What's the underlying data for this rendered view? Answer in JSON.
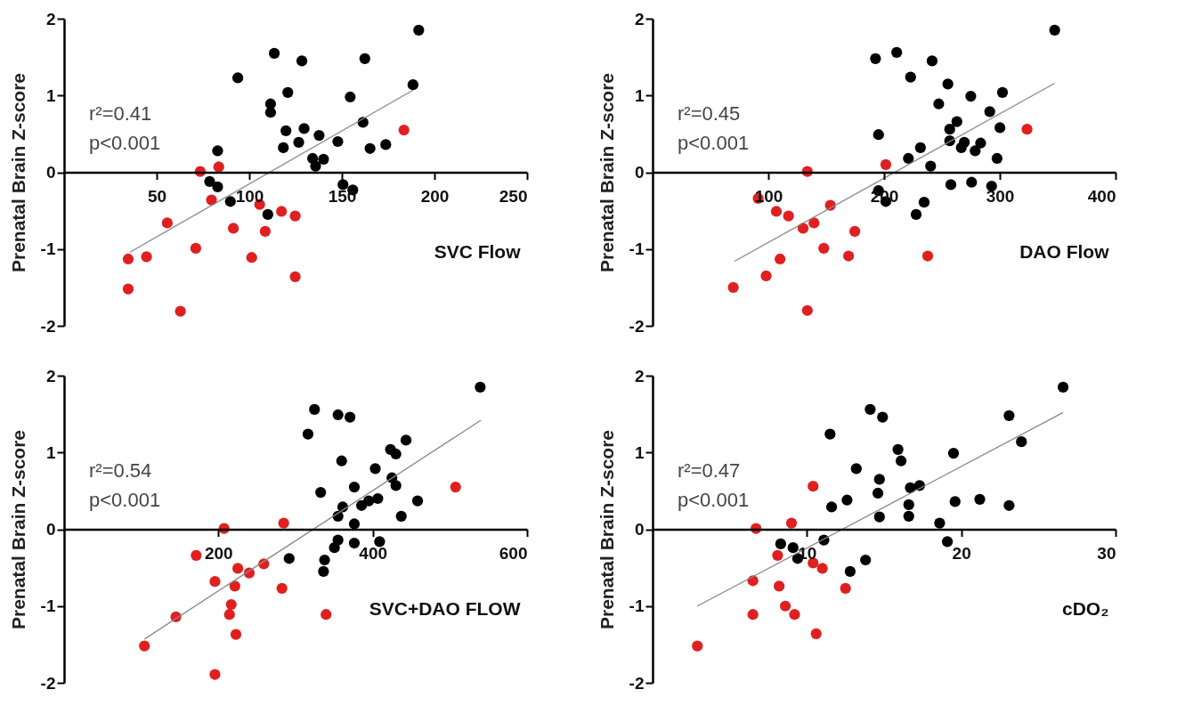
{
  "chart_data": [
    {
      "type": "scatter",
      "xlabel": "SVC Flow",
      "ylabel": "Prenatal Brain Z-score",
      "annotations": [
        "r²=0.41",
        "p<0.001"
      ],
      "marker": "circle",
      "xlim": [
        0,
        250
      ],
      "ylim": [
        -2,
        2
      ],
      "xticks": [
        50,
        100,
        150,
        200,
        250
      ],
      "yticks": [
        -2,
        -1,
        0,
        1,
        2
      ],
      "series": [
        {
          "color": "#000000",
          "x": [
            191.5,
            113.5,
            128.4,
            162.4,
            93.8,
            120.8,
            188.4,
            154.5,
            111.5,
            111.5,
            161.4,
            119.8,
            129.6,
            137.7,
            147.8,
            126.7,
            118.4,
            165.2,
            173.7,
            82.9,
            134.2,
            140.1,
            135.8,
            78.6,
            82.9,
            150.6,
            155.9,
            89.8,
            110
          ],
          "values": [
            1.85,
            1.55,
            1.45,
            1.48,
            1.23,
            1.04,
            1.14,
            0.98,
            0.89,
            0.78,
            0.65,
            0.54,
            0.57,
            0.48,
            0.4,
            0.39,
            0.32,
            0.31,
            0.36,
            0.28,
            0.18,
            0.17,
            0.08,
            -0.12,
            -0.19,
            -0.16,
            -0.23,
            -0.38,
            -0.55
          ]
        },
        {
          "color": "#e02020",
          "x": [
            183.5,
            73.5,
            83.5,
            79.6,
            105.6,
            117.4,
            124.8,
            55.7,
            91.4,
            108.6,
            71.1,
            101.3,
            44.5,
            34.6,
            124.8,
            34.6,
            62.8
          ],
          "values": [
            0.55,
            0.01,
            0.07,
            -0.36,
            -0.42,
            -0.51,
            -0.57,
            -0.66,
            -0.73,
            -0.77,
            -0.99,
            -1.11,
            -1.1,
            -1.13,
            -1.36,
            -1.52,
            -1.81
          ]
        },
        {
          "type": "line",
          "marker": "none",
          "color": "#888888",
          "x": [
            35.6,
            188.4
          ],
          "values": [
            -1.04,
            1.07
          ]
        }
      ]
    },
    {
      "type": "scatter",
      "xlabel": "DAO Flow",
      "ylabel": "Prenatal Brain Z-score",
      "annotations": [
        "r²=0.45",
        "p<0.001"
      ],
      "marker": "circle",
      "xlim": [
        0,
        400
      ],
      "ylim": [
        -2,
        2
      ],
      "xticks": [
        100,
        200,
        300,
        400
      ],
      "yticks": [
        -2,
        -1,
        0,
        1,
        2
      ],
      "series": [
        {
          "color": "#000000",
          "x": [
            347.4,
            210.9,
            192.6,
            241.5,
            222.9,
            255.1,
            302.3,
            274.9,
            247.2,
            291.3,
            262.9,
            300.1,
            256.7,
            195.2,
            256.7,
            269.3,
            283.4,
            266.7,
            231.4,
            278.7,
            221,
            297.6,
            240.2,
            257.7,
            275.6,
            292.9,
            195.2,
            201.5,
            234.6,
            227.7
          ],
          "values": [
            1.85,
            1.56,
            1.48,
            1.45,
            1.24,
            1.15,
            1.04,
            0.99,
            0.89,
            0.79,
            0.66,
            0.58,
            0.56,
            0.49,
            0.41,
            0.39,
            0.38,
            0.32,
            0.32,
            0.28,
            0.18,
            0.18,
            0.08,
            -0.16,
            -0.13,
            -0.18,
            -0.24,
            -0.38,
            -0.39,
            -0.55
          ]
        },
        {
          "color": "#e02020",
          "x": [
            323.5,
            201.5,
            133.7,
            91.2,
            106.9,
            117.4,
            153.6,
            139.4,
            130,
            174.7,
            147.9,
            169.3,
            110.1,
            237.7,
            98.1,
            69.7,
            133.7
          ],
          "values": [
            0.56,
            0.1,
            0.01,
            -0.34,
            -0.51,
            -0.57,
            -0.43,
            -0.66,
            -0.73,
            -0.77,
            -0.99,
            -1.09,
            -1.13,
            -1.09,
            -1.35,
            -1.5,
            -1.8
          ]
        },
        {
          "type": "line",
          "marker": "none",
          "color": "#888888",
          "x": [
            70.7,
            347.4
          ],
          "values": [
            -1.16,
            1.16
          ]
        }
      ]
    },
    {
      "type": "scatter",
      "xlabel": "SVC+DAO FLOW",
      "ylabel": "Prenatal Brain Z-score",
      "annotations": [
        "r²=0.54",
        "p<0.001"
      ],
      "marker": "circle",
      "xlim": [
        0,
        600
      ],
      "ylim": [
        -2,
        2
      ],
      "xticks": [
        200,
        400,
        600
      ],
      "yticks": [
        -2,
        -1,
        0,
        1,
        2
      ],
      "series": [
        {
          "color": "#000000",
          "x": [
            539.3,
            324.5,
            355,
            370.5,
            316.1,
            443.1,
            423,
            430,
            359.7,
            403.3,
            424.9,
            430,
            376.1,
            332.5,
            406.6,
            458.1,
            394.8,
            385.5,
            361.1,
            355,
            437,
            376.1,
            355,
            376.1,
            408.9,
            350.3,
            291.7,
            337.6,
            336.2
          ],
          "values": [
            1.85,
            1.56,
            1.49,
            1.46,
            1.24,
            1.16,
            1.04,
            0.98,
            0.89,
            0.79,
            0.67,
            0.57,
            0.55,
            0.48,
            0.4,
            0.37,
            0.37,
            0.31,
            0.29,
            0.17,
            0.17,
            0.07,
            -0.14,
            -0.18,
            -0.16,
            -0.24,
            -0.38,
            -0.4,
            -0.55
          ]
        },
        {
          "color": "#e02020",
          "x": [
            507.4,
            284.6,
            207.3,
            171.2,
            258.8,
            225.1,
            239.9,
            195.5,
            221.3,
            282.3,
            216.6,
            214.3,
            144.9,
            339.5,
            222.7,
            104.1,
            195.5
          ],
          "values": [
            0.55,
            0.08,
            0.01,
            -0.34,
            -0.45,
            -0.51,
            -0.57,
            -0.68,
            -0.74,
            -0.77,
            -0.98,
            -1.11,
            -1.14,
            -1.11,
            -1.37,
            -1.52,
            -1.89
          ]
        },
        {
          "type": "line",
          "marker": "none",
          "color": "#888888",
          "x": [
            104.1,
            540.2
          ],
          "values": [
            -1.43,
            1.42
          ]
        }
      ]
    },
    {
      "type": "scatter",
      "xlabel": "cDO₂",
      "ylabel": "Prenatal Brain Z-score",
      "annotations": [
        "r²=0.47",
        "p<0.001"
      ],
      "marker": "circle",
      "xlim": [
        0,
        30
      ],
      "ylim": [
        -2,
        2
      ],
      "xticks": [
        10,
        20,
        30
      ],
      "yticks": [
        -2,
        -1,
        0,
        1,
        2
      ],
      "series": [
        {
          "color": "#000000",
          "x": [
            26.6,
            14.1,
            14.9,
            23.1,
            11.5,
            23.9,
            15.9,
            19.5,
            16.1,
            13.2,
            14.7,
            16.7,
            17.3,
            14.6,
            12.6,
            19.6,
            21.2,
            23.1,
            11.6,
            16.6,
            14.7,
            16.6,
            18.6,
            11.1,
            19.1,
            8.3,
            9.1,
            9.4,
            13.8,
            12.8
          ],
          "values": [
            1.85,
            1.56,
            1.46,
            1.48,
            1.24,
            1.14,
            1.04,
            0.99,
            0.89,
            0.79,
            0.65,
            0.54,
            0.57,
            0.47,
            0.38,
            0.36,
            0.39,
            0.31,
            0.29,
            0.32,
            0.16,
            0.17,
            0.08,
            -0.14,
            -0.16,
            -0.19,
            -0.24,
            -0.38,
            -0.4,
            -0.55
          ]
        },
        {
          "color": "#e02020",
          "x": [
            10.4,
            6.7,
            9,
            8.1,
            10.4,
            11,
            6.5,
            8.2,
            12.5,
            8.6,
            9.2,
            6.5,
            10.6,
            2.9
          ],
          "values": [
            0.56,
            0.01,
            0.08,
            -0.34,
            -0.44,
            -0.51,
            -0.67,
            -0.74,
            -0.77,
            -1,
            -1.11,
            -1.11,
            -1.36,
            -1.52
          ]
        },
        {
          "type": "line",
          "marker": "none",
          "color": "#888888",
          "x": [
            2.9,
            26.6
          ],
          "values": [
            -1,
            1.52
          ]
        }
      ]
    }
  ]
}
